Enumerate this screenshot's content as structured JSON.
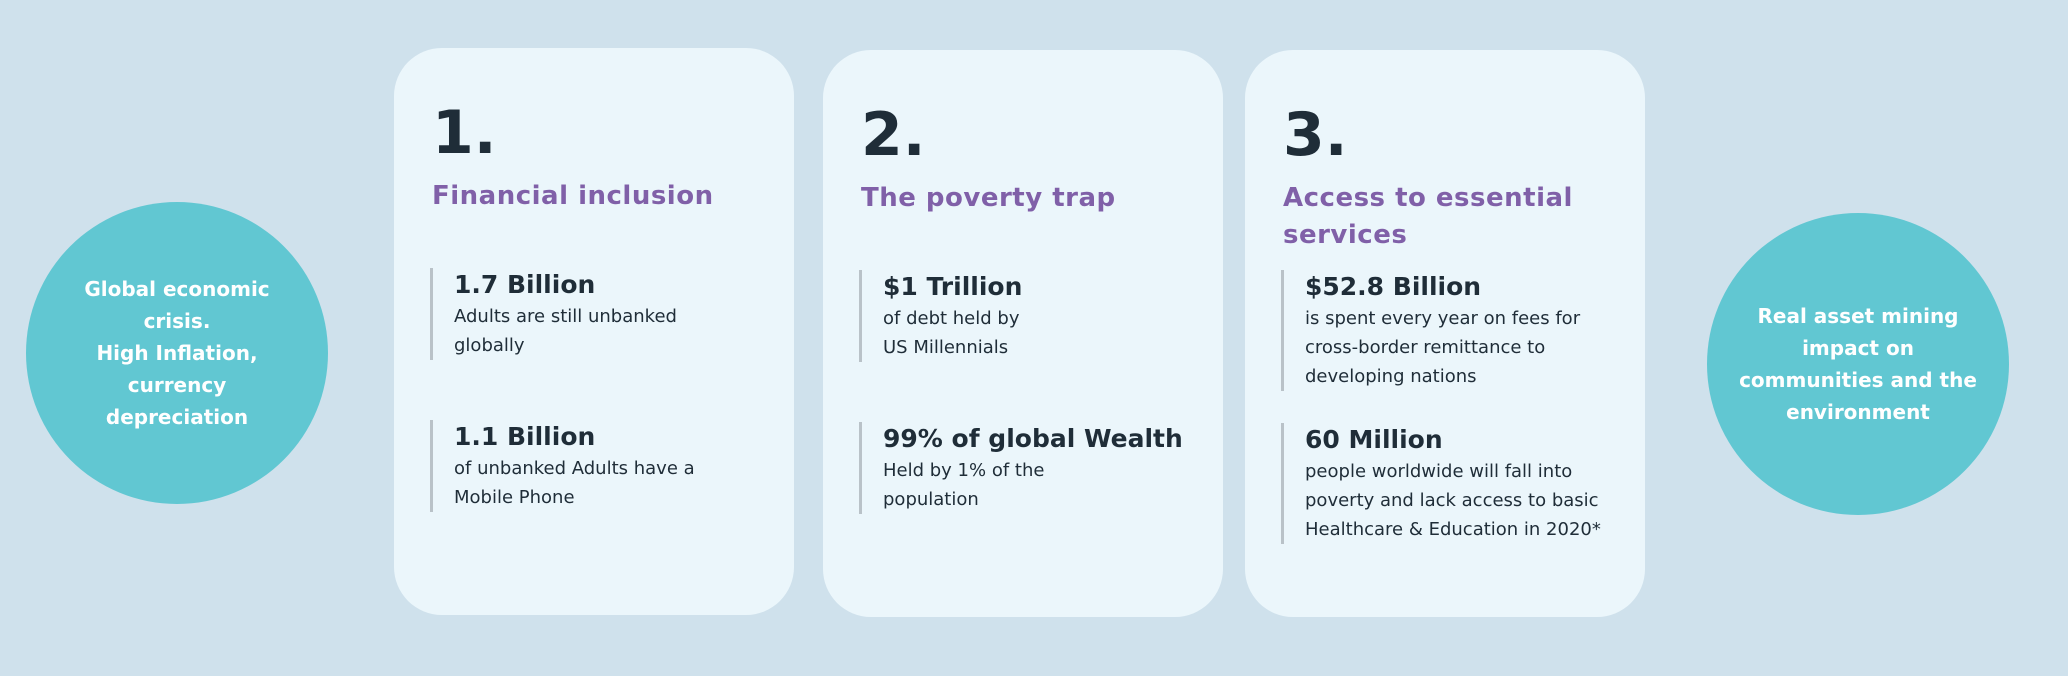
{
  "left_circle": {
    "text": "Global economic\ncrisis.\nHigh Inflation,\ncurrency\ndepreciation"
  },
  "right_circle": {
    "text": "Real asset  mining\nimpact on\ncommunities and the\nenvironment"
  },
  "cards": [
    {
      "number": "1.",
      "title": "Financial inclusion",
      "stats": [
        {
          "value": "1.7 Billion",
          "desc": "Adults are still unbanked\nglobally"
        },
        {
          "value": "1.1 Billion",
          "desc": "of unbanked Adults have a\nMobile Phone"
        }
      ]
    },
    {
      "number": "2.",
      "title": "The poverty trap",
      "stats": [
        {
          "value": "$1 Trillion",
          "desc": "of debt held by\nUS Millennials"
        },
        {
          "value": "99% of global Wealth",
          "desc": "Held by 1% of the\npopulation"
        }
      ]
    },
    {
      "number": "3.",
      "title": "Access to essential services",
      "stats": [
        {
          "value": "$52.8 Billion",
          "desc": "is spent every year on fees for\ncross-border remittance to\ndeveloping nations"
        },
        {
          "value": "60 Million",
          "desc": "people worldwide will fall into\npoverty and lack access to basic\nHealthcare & Education in 2020*"
        }
      ]
    }
  ],
  "colors": {
    "background": "#cfe1ec",
    "card": "#ebf6fb",
    "circle": "#61c7d2",
    "title": "#8060a8",
    "text": "#1f2d38"
  }
}
